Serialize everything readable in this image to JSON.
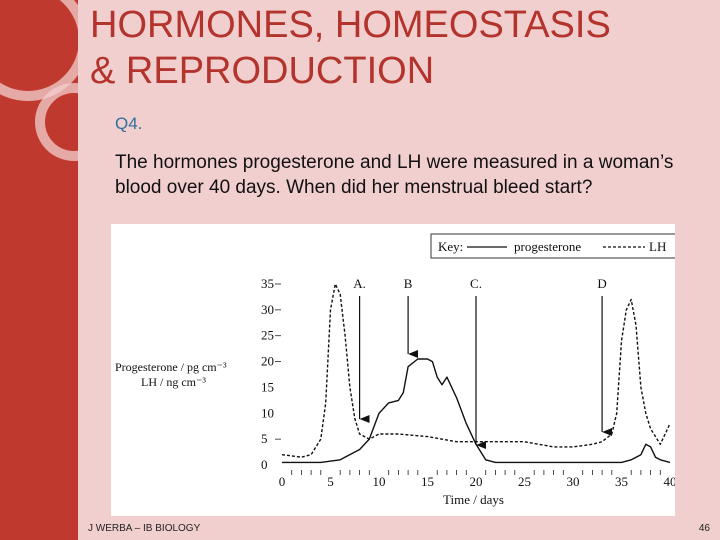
{
  "slide": {
    "title_line1": "HORMONES, HOMEOSTASIS",
    "title_line2": "& REPRODUCTION",
    "question_label": "Q4.",
    "question_text": "The hormones progesterone and LH were measured in a woman’s blood over 40 days. When did her menstrual bleed start?",
    "footer_left": "J WERBA – IB BIOLOGY",
    "page_number": "46",
    "colors": {
      "accent": "#c0392f",
      "background": "#f2cfcf",
      "title": "#b3342c",
      "label": "#2f6f9a"
    }
  },
  "chart_data": {
    "type": "line",
    "key": {
      "label": "Key:",
      "progesterone_label": "progesterone",
      "lh_label": "LH"
    },
    "ylabel_line1": "Progesterone / pg cm⁻³",
    "ylabel_line2": "LH / ng cm⁻³",
    "xlabel": "Time / days",
    "x_ticks": [
      "0",
      "5",
      "10",
      "15",
      "20",
      "25",
      "30",
      "35",
      "40"
    ],
    "y_ticks": [
      "0",
      "5",
      "10",
      "15",
      "20",
      "25",
      "30",
      "35"
    ],
    "xlim": [
      0,
      40
    ],
    "ylim": [
      0,
      35
    ],
    "arrows": [
      {
        "label": "A.",
        "day": 8
      },
      {
        "label": "B",
        "day": 13
      },
      {
        "label": "C.",
        "day": 20
      },
      {
        "label": "D",
        "day": 33
      }
    ],
    "series": [
      {
        "name": "progesterone",
        "style": "solid",
        "x": [
          0,
          2,
          4,
          6,
          8,
          9,
          10,
          11,
          12,
          12.5,
          13,
          14,
          15,
          15.5,
          16,
          16.5,
          17,
          18,
          19,
          20,
          21,
          22,
          25,
          30,
          35,
          36,
          37,
          37.5,
          38,
          38.5,
          39,
          40
        ],
        "y": [
          0.5,
          0.5,
          0.5,
          1,
          3,
          5,
          10,
          12,
          12.5,
          14,
          19,
          20.5,
          20.5,
          20,
          17,
          15.5,
          17,
          13,
          8,
          4,
          1,
          0.5,
          0.5,
          0.5,
          0.5,
          1,
          2,
          4,
          3.5,
          1.5,
          1,
          0.5
        ]
      },
      {
        "name": "LH",
        "style": "dashed",
        "x": [
          0,
          2,
          3,
          4,
          4.5,
          5,
          5.5,
          6,
          6.5,
          7,
          7.5,
          8,
          9,
          10,
          12,
          15,
          18,
          20,
          22,
          25,
          28,
          30,
          32,
          33,
          34,
          34.5,
          35,
          35.5,
          36,
          36.5,
          37,
          37.5,
          38,
          39,
          40
        ],
        "y": [
          2,
          1.5,
          2,
          5,
          12,
          30,
          35,
          33,
          25,
          15,
          9,
          6,
          5,
          6,
          6,
          5.5,
          4.5,
          4.5,
          4.5,
          4.5,
          3.5,
          3.5,
          4,
          4.5,
          6,
          10,
          24,
          30,
          32,
          27,
          15,
          10,
          7,
          4,
          8
        ]
      }
    ],
    "grid": false
  }
}
